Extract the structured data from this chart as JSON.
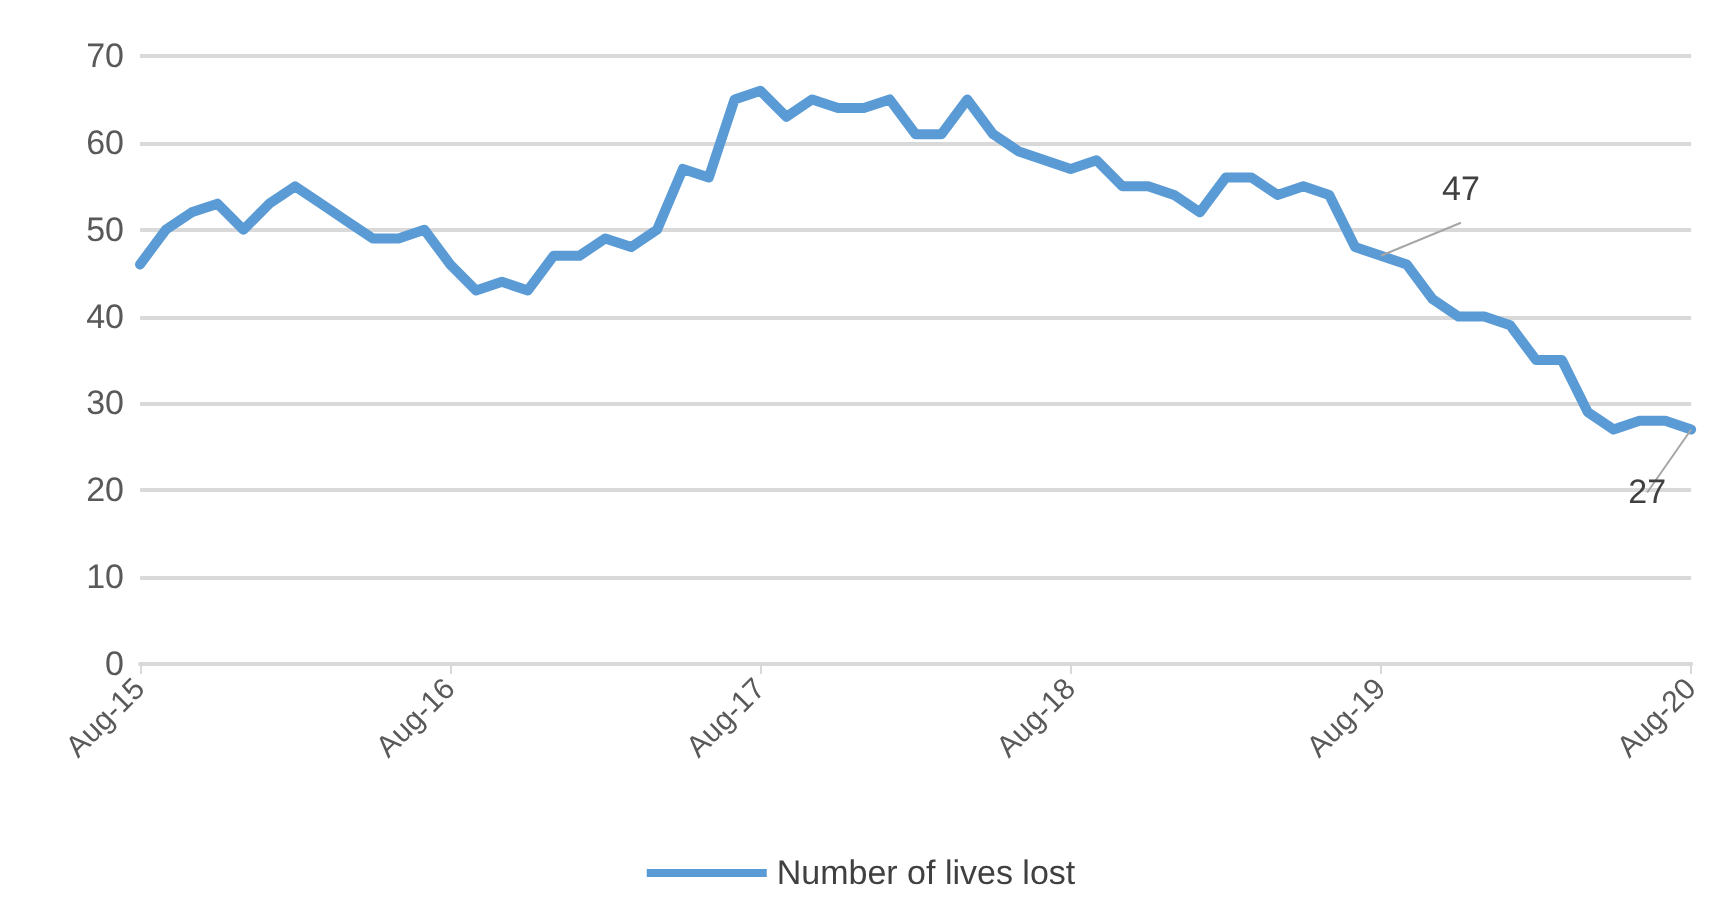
{
  "chart_data": {
    "type": "line",
    "categories": [
      "Aug-15",
      null,
      null,
      null,
      null,
      null,
      null,
      null,
      null,
      null,
      null,
      null,
      "Aug-16",
      null,
      null,
      null,
      null,
      null,
      null,
      null,
      null,
      null,
      null,
      null,
      "Aug-17",
      null,
      null,
      null,
      null,
      null,
      null,
      null,
      null,
      null,
      null,
      null,
      "Aug-18",
      null,
      null,
      null,
      null,
      null,
      null,
      null,
      null,
      null,
      null,
      null,
      "Aug-19",
      null,
      null,
      null,
      null,
      null,
      null,
      null,
      null,
      null,
      null,
      null,
      "Aug-20"
    ],
    "series": [
      {
        "name": "Number of lives lost",
        "color": "#5b9bd5",
        "values": [
          46,
          50,
          52,
          53,
          50,
          53,
          55,
          53,
          51,
          49,
          49,
          50,
          46,
          43,
          44,
          43,
          47,
          47,
          49,
          48,
          50,
          57,
          56,
          65,
          66,
          63,
          65,
          64,
          64,
          65,
          61,
          61,
          65,
          61,
          59,
          58,
          57,
          58,
          55,
          55,
          54,
          52,
          56,
          56,
          54,
          55,
          54,
          48,
          47,
          46,
          42,
          40,
          40,
          39,
          35,
          35,
          29,
          27,
          28,
          28,
          27
        ],
        "value_labels": [
          null,
          null,
          null,
          null,
          null,
          null,
          null,
          null,
          null,
          null,
          null,
          null,
          null,
          null,
          null,
          null,
          null,
          null,
          null,
          null,
          null,
          null,
          null,
          null,
          null,
          null,
          null,
          null,
          null,
          null,
          null,
          null,
          null,
          null,
          null,
          null,
          null,
          null,
          null,
          null,
          null,
          null,
          null,
          null,
          null,
          null,
          null,
          null,
          "47",
          null,
          null,
          null,
          null,
          null,
          null,
          null,
          null,
          null,
          null,
          null,
          "27"
        ]
      }
    ],
    "ylim": [
      0,
      70
    ],
    "yticks": [
      0,
      10,
      20,
      30,
      40,
      50,
      60,
      70
    ],
    "grid": "y",
    "legend": "bottom",
    "marker": "none",
    "line_style": "solid"
  }
}
